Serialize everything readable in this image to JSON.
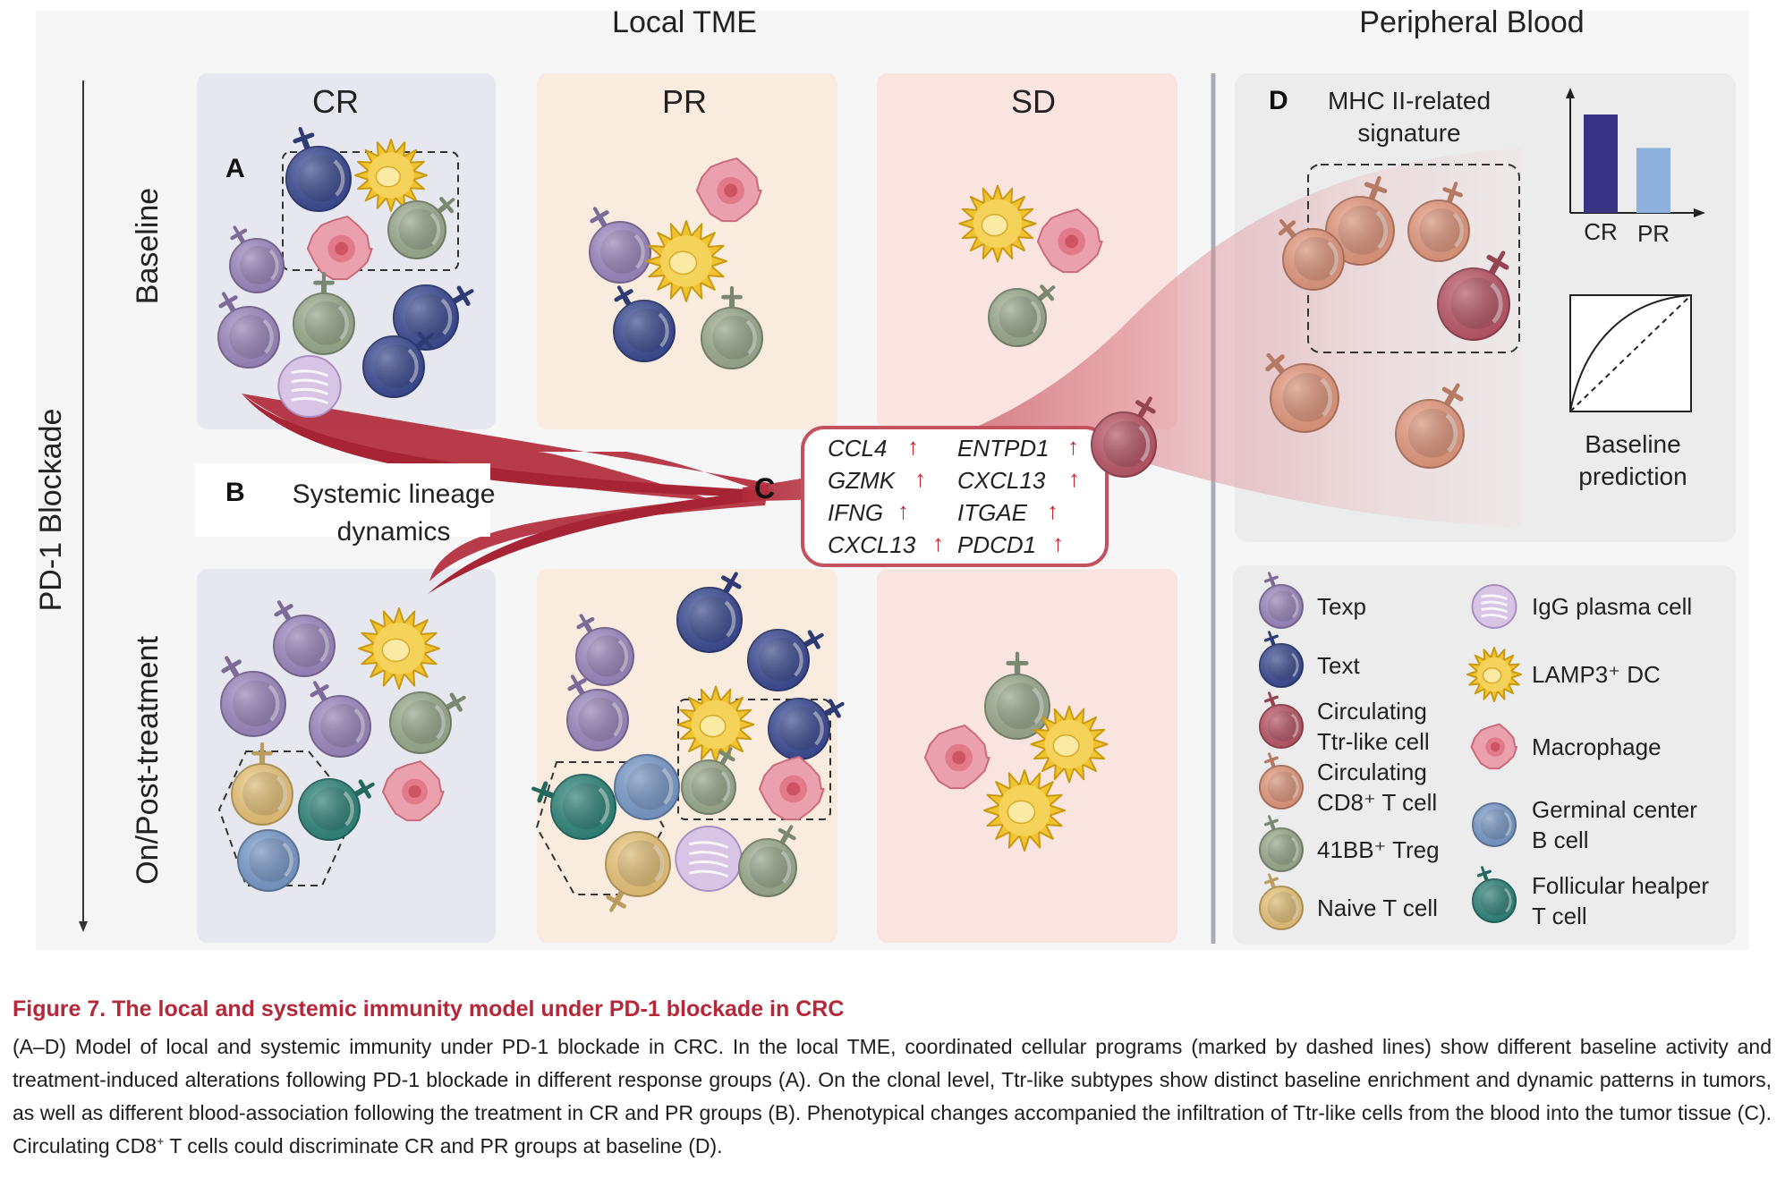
{
  "figure": {
    "headers": {
      "local": "Local TME",
      "peripheral": "Peripheral Blood"
    },
    "axis": {
      "label": "PD-1 Blockade"
    },
    "rows": {
      "baseline": "Baseline",
      "post": "On/Post-treatment"
    },
    "groups": {
      "cr": "CR",
      "pr": "PR",
      "sd": "SD"
    },
    "panels": {
      "a": "A",
      "b": "B",
      "b_text": [
        "Systemic lineage",
        "dynamics"
      ],
      "c": "C",
      "d": "D",
      "d_text": [
        "MHC II-related",
        "signature"
      ]
    },
    "genes": {
      "left": [
        "CCL4",
        "GZMK",
        "IFNG",
        "CXCL13"
      ],
      "right": [
        "ENTPD1",
        "CXCL13",
        "ITGAE",
        "PDCD1"
      ],
      "arrow": "↑"
    },
    "bar": {
      "categories": [
        "CR",
        "PR"
      ],
      "values": [
        1.0,
        0.66
      ],
      "colors": [
        "#3b3383",
        "#8fb1de"
      ]
    },
    "roc_label": [
      "Baseline",
      "prediction"
    ],
    "legend": {
      "left": [
        {
          "icon": "texp",
          "lines": [
            "Texp"
          ]
        },
        {
          "icon": "text",
          "lines": [
            "Text"
          ]
        },
        {
          "icon": "ttr",
          "lines": [
            "Circulating",
            "Ttr-like cell"
          ]
        },
        {
          "icon": "cd8",
          "lines": [
            "Circulating",
            "CD8⁺ T cell"
          ]
        },
        {
          "icon": "treg",
          "lines": [
            "41BB⁺ Treg"
          ]
        },
        {
          "icon": "naive",
          "lines": [
            "Naive T cell"
          ]
        }
      ],
      "right": [
        {
          "icon": "igg",
          "lines": [
            "IgG plasma cell"
          ]
        },
        {
          "icon": "dc",
          "lines": [
            "LAMP3⁺ DC"
          ]
        },
        {
          "icon": "mac",
          "lines": [
            "Macrophage"
          ]
        },
        {
          "icon": "gcb",
          "lines": [
            "Germinal center",
            "B cell"
          ]
        },
        {
          "icon": "tfh",
          "lines": [
            "Follicular healper",
            "T cell"
          ]
        }
      ]
    },
    "colors": {
      "texp": "#a58fcb",
      "text": "#3d4e9c",
      "ttr": "#c65a6c",
      "cd8": "#f2a184",
      "treg": "#a4b596",
      "naive": "#f8d07e",
      "igg": "#d8c5e6",
      "dc": "#f0c430",
      "mac": "#eba0ad",
      "gcb": "#7ea3d6",
      "tfh": "#2f8c80",
      "accent": "#b12a3a"
    }
  },
  "caption": {
    "title": "Figure 7.  The local and systemic immunity model under PD-1 blockade in CRC",
    "body_a": "(A–D) Model of local and systemic immunity under PD-1 blockade in CRC. In the local TME, coordinated cellular programs (marked by dashed lines) show different baseline activity and treatment-induced alterations following PD-1 blockade in different response groups (A). On the clonal level, Ttr-like subtypes show distinct baseline enrichment and dynamic patterns in tumors, as well as different blood-association following the treatment in CR and PR groups (B). Phenotypical changes accompanied the infiltration of Ttr-like cells from the blood into the tumor tissue (C). Circulating CD8",
    "sup": "+",
    "body_b": " T cells could discriminate CR and PR groups at baseline (D)."
  }
}
